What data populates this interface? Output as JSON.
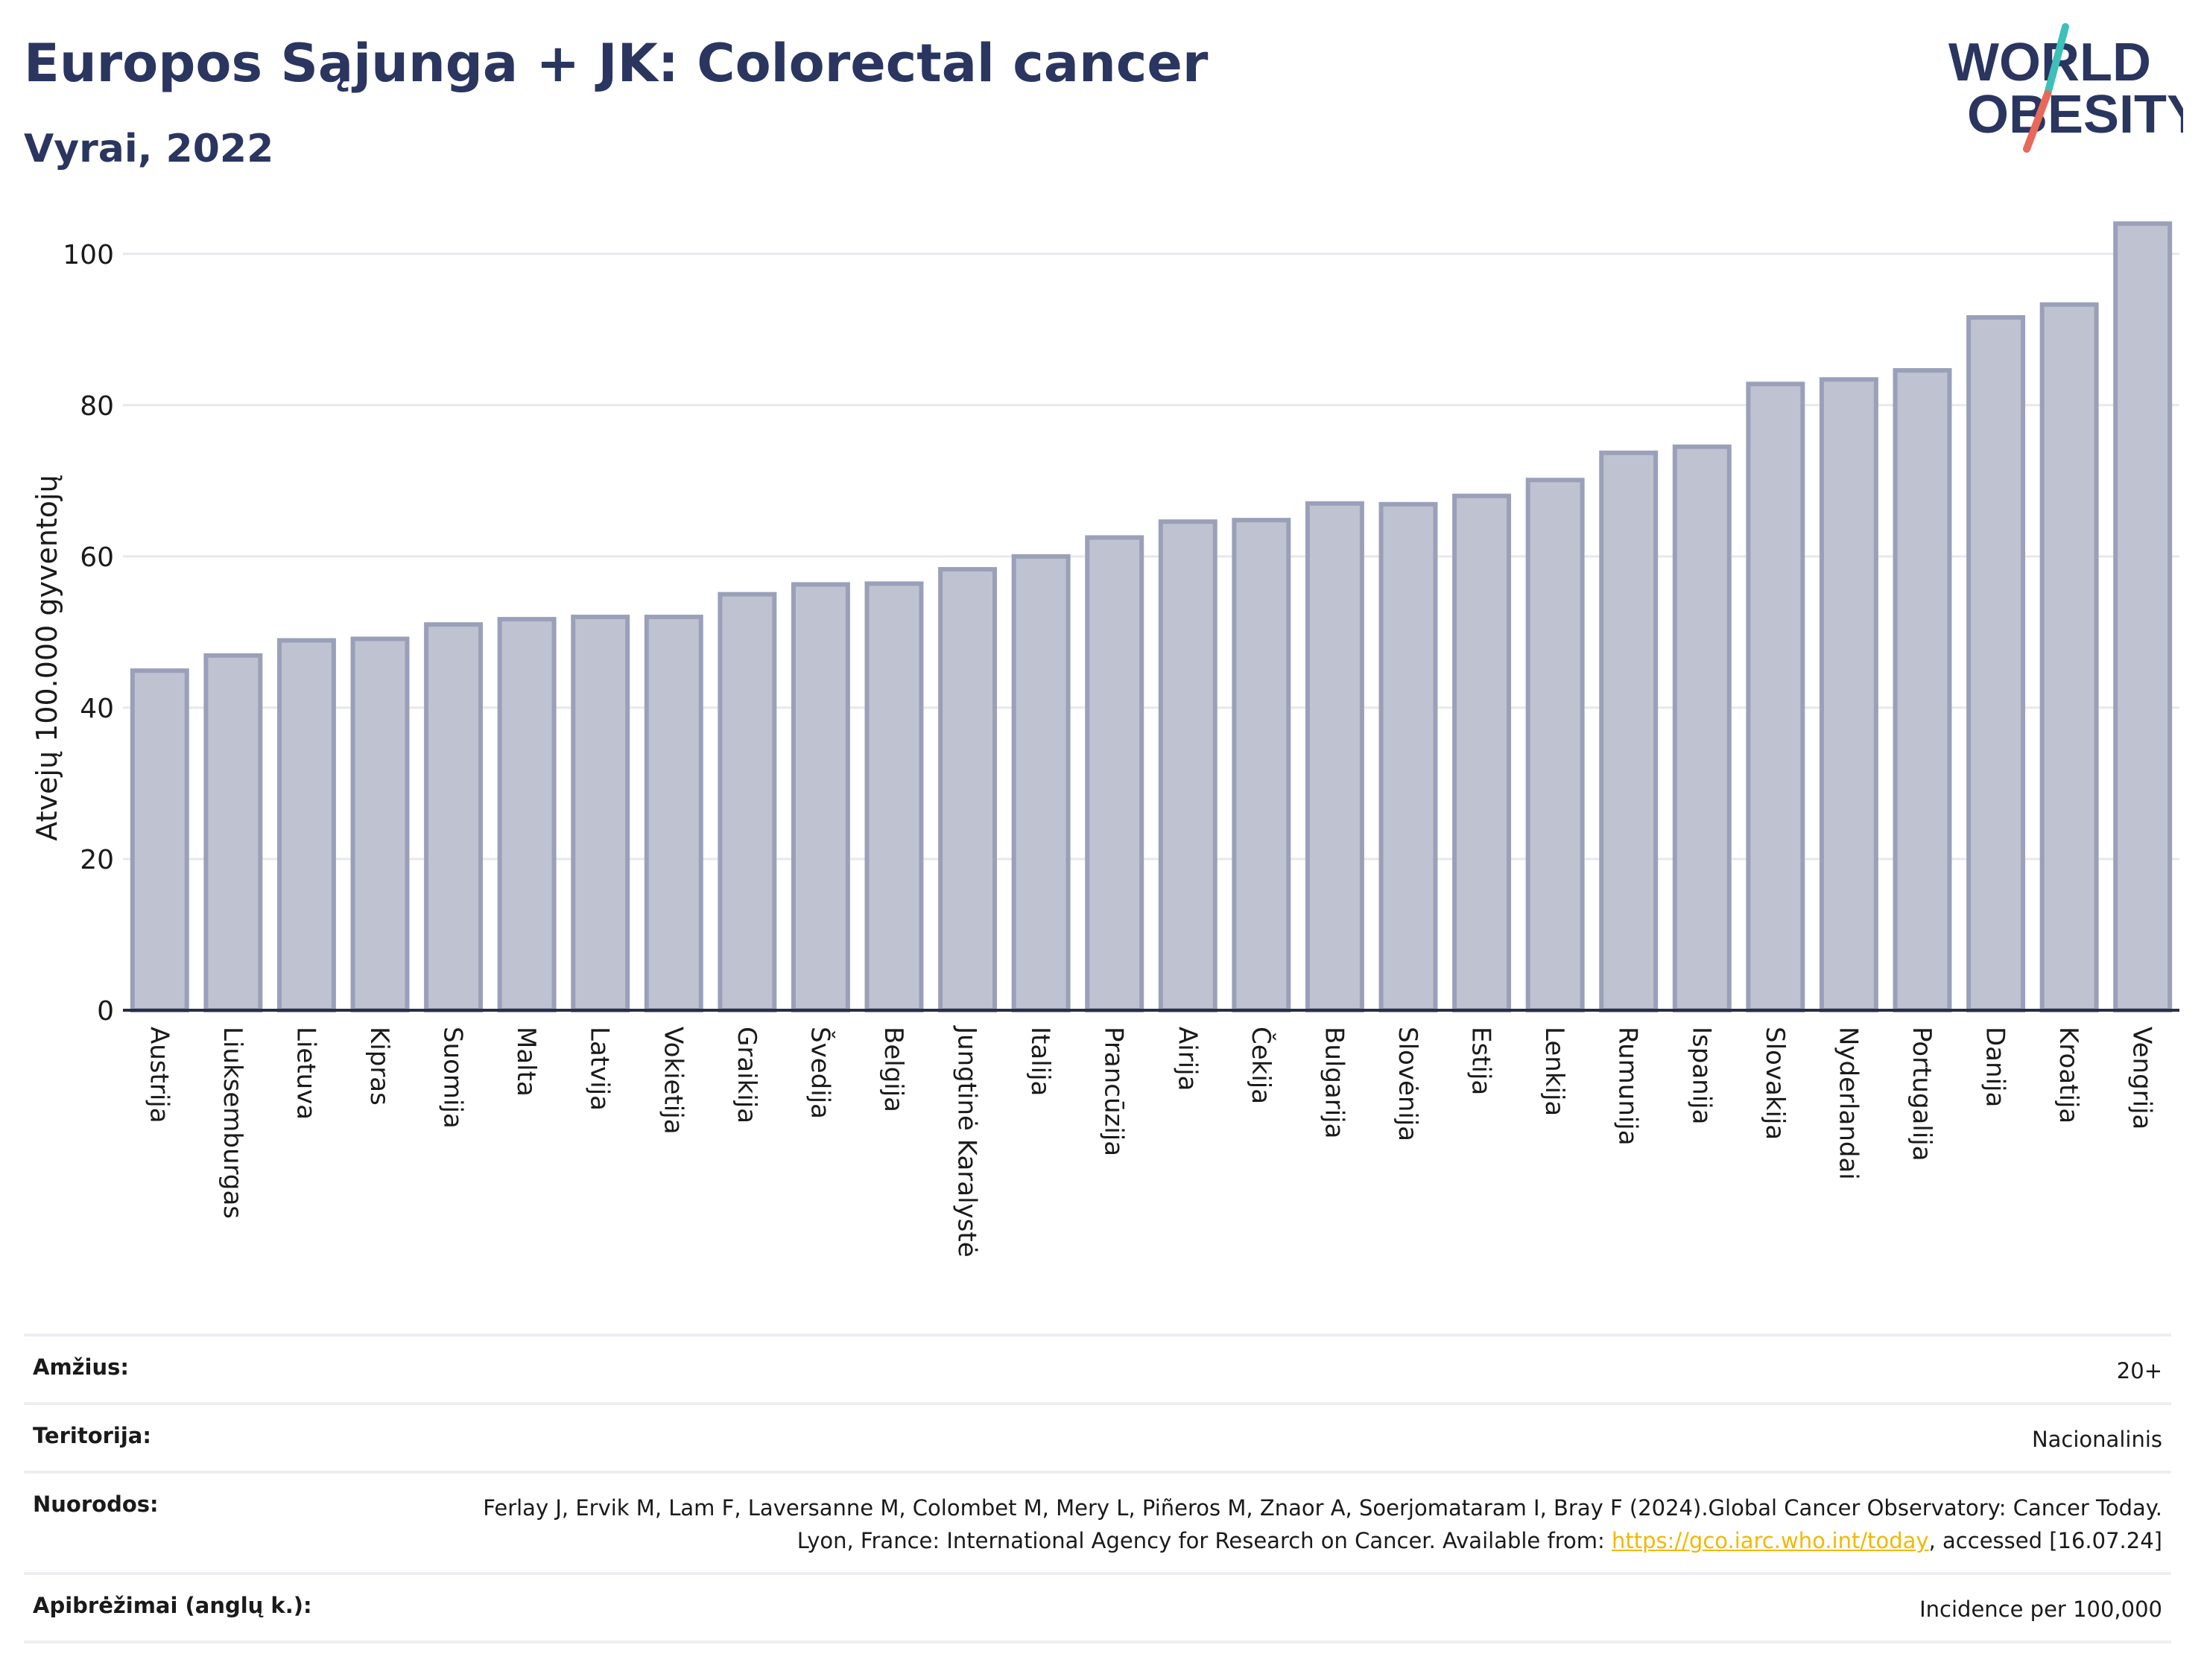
{
  "header": {
    "title": "Europos Sąjunga + JK: Colorectal cancer",
    "subtitle": "Vyrai, 2022",
    "logo_line1": "WORLD",
    "logo_line2": "OBESITY"
  },
  "colors": {
    "bar_fill": "#bfc2d0",
    "bar_stroke": "#9aa0b8",
    "title": "#2a3560",
    "grid": "#e6e8ee",
    "link": "#f2b800",
    "logo_teal": "#3cc0b8",
    "logo_red": "#e8685a"
  },
  "chart_data": {
    "type": "bar",
    "title": "Europos Sąjunga + JK: Colorectal cancer",
    "subtitle": "Vyrai, 2022",
    "xlabel": "",
    "ylabel": "Atvejų 100.000 gyventojų",
    "ylim": [
      0,
      105
    ],
    "yticks": [
      0,
      20,
      40,
      60,
      80,
      100
    ],
    "grid": true,
    "categories": [
      "Austrija",
      "Liuksemburgas",
      "Lietuva",
      "Kipras",
      "Suomija",
      "Malta",
      "Latvija",
      "Vokietija",
      "Graikija",
      "Švedija",
      "Belgija",
      "Jungtinė Karalystė",
      "Italija",
      "Prancūzija",
      "Airija",
      "Čekija",
      "Bulgarija",
      "Slovėnija",
      "Estija",
      "Lenkija",
      "Rumunija",
      "Ispanija",
      "Slovakija",
      "Nyderlandai",
      "Portugalija",
      "Danija",
      "Kroatija",
      "Vengrija"
    ],
    "values": [
      44.9,
      46.9,
      48.9,
      49.1,
      51.0,
      51.7,
      52.0,
      52.0,
      55.0,
      56.3,
      56.4,
      58.3,
      60.0,
      62.5,
      64.6,
      64.8,
      67.0,
      66.9,
      68.0,
      70.1,
      73.7,
      74.5,
      82.8,
      83.4,
      84.6,
      91.6,
      93.3,
      104.0
    ]
  },
  "info": {
    "rows": [
      {
        "label": "Amžius:",
        "value": "20+"
      },
      {
        "label": "Teritorija:",
        "value": "Nacionalinis"
      },
      {
        "label": "Nuorodos:",
        "value_pre": "Ferlay J, Ervik M, Lam F, Laversanne M, Colombet M, Mery L, Piñeros M, Znaor A, Soerjomataram I, Bray F (2024).Global Cancer Observatory: Cancer Today. Lyon, France: International Agency for Research on Cancer. Available from: ",
        "link": "https://gco.iarc.who.int/today",
        "value_post": ", accessed [16.07.24]"
      },
      {
        "label": "Apibrėžimai (anglų k.):",
        "value": "Incidence per 100,000"
      }
    ]
  }
}
